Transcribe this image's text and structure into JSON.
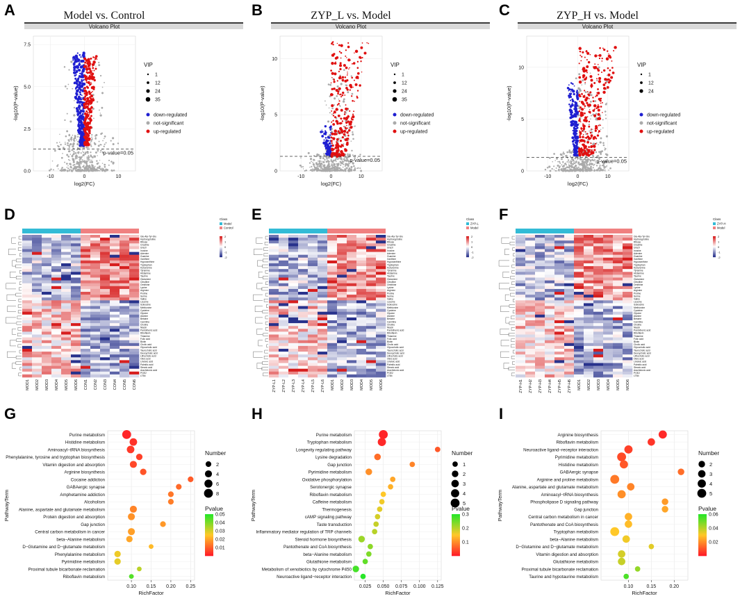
{
  "figure": {
    "letters": [
      "A",
      "B",
      "C",
      "D",
      "E",
      "F",
      "G",
      "H",
      "I"
    ]
  },
  "chart_data": [
    {
      "id": "A",
      "type": "scatter",
      "title": "Model vs. Control",
      "subtitle": "Volcano Plot",
      "xlabel": "log2(FC)",
      "ylabel": "-log10(P-value)",
      "xlim": [
        -15,
        15
      ],
      "ylim": [
        0,
        8
      ],
      "xticks": [
        -10,
        0,
        10
      ],
      "yticks": [
        0.0,
        2.5,
        5.0,
        7.5
      ],
      "ytick_labels": [
        "0.0",
        "2.5",
        "5.0",
        "7.5"
      ],
      "threshold": 1.3,
      "threshold_label": "p-value=0.05",
      "vip_title": "VIP",
      "vip_values": [
        "1",
        "12",
        "24",
        "35"
      ],
      "legend": [
        "down-regulated",
        "not-significant",
        "up-regulated"
      ],
      "colors": {
        "down": "#1f1fd1",
        "ns": "#aaaaaa",
        "up": "#e01010"
      },
      "clouds": {
        "down": [
          -3.8,
          0.0,
          1.5,
          7.0
        ],
        "up": [
          0.0,
          3.8,
          1.5,
          6.8
        ],
        "ns": [
          -12,
          12,
          0,
          2.2
        ],
        "scattered_ns": [
          -6,
          6,
          1.3,
          6.5
        ]
      },
      "counts": {
        "down": 320,
        "up": 280,
        "ns": 420,
        "scattered_ns": 70
      }
    },
    {
      "id": "B",
      "type": "scatter",
      "title": "ZYP_L vs. Model",
      "subtitle": "Volcano Plot",
      "xlabel": "log2(FC)",
      "ylabel": "-log10(P-value)",
      "xlim": [
        -17,
        17
      ],
      "ylim": [
        0,
        12
      ],
      "xticks": [
        -10,
        0,
        10
      ],
      "yticks": [
        0,
        5,
        10
      ],
      "ytick_labels": [
        "0",
        "5",
        "10"
      ],
      "threshold": 1.3,
      "threshold_label": "p-value=0.05",
      "vip_title": "VIP",
      "vip_values": [
        "1",
        "12",
        "24",
        "35"
      ],
      "legend": [
        "down-regulated",
        "not-significant",
        "up-regulated"
      ],
      "colors": {
        "down": "#1f1fd1",
        "ns": "#aaaaaa",
        "up": "#e01010"
      },
      "clouds": {
        "down": [
          -4,
          0,
          1.3,
          4.0
        ],
        "up": [
          0,
          13,
          1.3,
          11.5
        ],
        "ns": [
          -12,
          12,
          0,
          1.6
        ],
        "scattered_ns": [
          -2,
          8,
          1.3,
          9
        ]
      },
      "counts": {
        "down": 80,
        "up": 260,
        "ns": 380,
        "scattered_ns": 90
      }
    },
    {
      "id": "C",
      "type": "scatter",
      "title": "ZYP_H vs. Model",
      "subtitle": "Volcano Plot",
      "xlabel": "log2(FC)",
      "ylabel": "-log10(P-value)",
      "xlim": [
        -17,
        17
      ],
      "ylim": [
        0,
        13
      ],
      "xticks": [
        -10,
        0,
        10
      ],
      "yticks": [
        0,
        5,
        10
      ],
      "ytick_labels": [
        "0",
        "5",
        "10"
      ],
      "threshold": 1.3,
      "threshold_label": "p-value=0.05",
      "vip_title": "VIP",
      "vip_values": [
        "1",
        "12",
        "24"
      ],
      "legend": [
        "down-regulated",
        "not-significant",
        "up-regulated"
      ],
      "colors": {
        "down": "#1f1fd1",
        "ns": "#aaaaaa",
        "up": "#e01010"
      },
      "clouds": {
        "down": [
          -3.5,
          0,
          1.5,
          8.5
        ],
        "up": [
          0.5,
          14,
          1.5,
          12
        ],
        "ns": [
          -12,
          13,
          0,
          2.0
        ],
        "scattered_ns": [
          -1,
          10,
          1.3,
          10
        ]
      },
      "counts": {
        "down": 180,
        "up": 280,
        "ns": 400,
        "scattered_ns": 100
      }
    },
    {
      "id": "D",
      "type": "heatmap",
      "columns": [
        "MOD1",
        "MOD2",
        "MOD3",
        "MOD4",
        "MOD5",
        "MOD6",
        "CON1",
        "CON2",
        "CON3",
        "CON4",
        "CON5",
        "CON6"
      ],
      "group_split": 6,
      "legend_title": "Class",
      "legend_items": [
        "Model",
        "Control"
      ],
      "group_colors": [
        "#33bbd6",
        "#f08080"
      ],
      "scale_labels": [
        "2",
        "1",
        "0",
        "-1",
        "-2"
      ],
      "row_labels": [
        "Glu-Ala-Tyr-Glu",
        "Hydroxyproline",
        "Ribose",
        "Creatine",
        "Uracil",
        "Inosine",
        "Adenine",
        "Guanine",
        "Xanthine",
        "Hypoxanthine",
        "Tryptophan",
        "Kynurenine",
        "Tyramine",
        "Histamine",
        "Taurine",
        "Glutamine",
        "Citrulline",
        "Ornithine",
        "Lysine",
        "Arginine",
        "Proline",
        "Serine",
        "Valine",
        "Leucine",
        "Isoleucine",
        "Methionine",
        "Cysteine",
        "Glycine",
        "Alanine",
        "Betaine",
        "Carnitine",
        "Choline",
        "Niacin",
        "Pantothenic acid",
        "Riboflavin",
        "Thiamine",
        "Folic acid",
        "Biotin",
        "Cholic acid",
        "Glycocholic acid",
        "Taurocholic acid",
        "Deoxycholic acid",
        "Lithocholic acid",
        "Oleic acid",
        "Linoleic acid",
        "Palmitic acid",
        "Stearic acid",
        "Arachidonic acid",
        "PGE2",
        "LTB4"
      ],
      "seed": 11
    },
    {
      "id": "E",
      "type": "heatmap",
      "columns": [
        "ZYP-L1",
        "ZYP-L2",
        "ZYP-L3",
        "ZYP-L4",
        "ZYP-L5",
        "ZYP-L6",
        "MOD1",
        "MOD2",
        "MOD3",
        "MOD4",
        "MOD5",
        "MOD6"
      ],
      "group_split": 6,
      "legend_title": "Class",
      "legend_items": [
        "ZYP-L",
        "Model"
      ],
      "group_colors": [
        "#33bbd6",
        "#f08080"
      ],
      "scale_labels": [
        "2",
        "1",
        "0",
        "-1",
        "-2"
      ],
      "row_labels": [
        "Glu-Ala-Tyr-Glu",
        "Hydroxyproline",
        "Ribose",
        "Creatine",
        "Uracil",
        "Inosine",
        "Adenine",
        "Guanine",
        "Xanthine",
        "Hypoxanthine",
        "Tryptophan",
        "Kynurenine",
        "Tyramine",
        "Histamine",
        "Taurine",
        "Glutamine",
        "Citrulline",
        "Ornithine",
        "Lysine",
        "Arginine",
        "Proline",
        "Serine",
        "Valine",
        "Leucine",
        "Isoleucine",
        "Methionine",
        "Cysteine",
        "Glycine",
        "Alanine",
        "Betaine",
        "Carnitine",
        "Choline",
        "Niacin",
        "Pantothenic acid",
        "Riboflavin",
        "Thiamine",
        "Folic acid",
        "Biotin",
        "Cholic acid",
        "Glycocholic acid",
        "Taurocholic acid",
        "Deoxycholic acid",
        "Lithocholic acid",
        "Oleic acid",
        "Linoleic acid",
        "Palmitic acid",
        "Stearic acid",
        "Arachidonic acid",
        "PGE2",
        "LTB4"
      ],
      "seed": 23
    },
    {
      "id": "F",
      "type": "heatmap",
      "columns": [
        "ZYP-H1",
        "ZYP-H2",
        "ZYP-H3",
        "ZYP-H4",
        "ZYP-H5",
        "ZYP-H6",
        "MOD1",
        "MOD2",
        "MOD3",
        "MOD4",
        "MOD5",
        "MOD6"
      ],
      "group_split": 6,
      "legend_title": "Class",
      "legend_items": [
        "ZYP-H",
        "Model"
      ],
      "group_colors": [
        "#33bbd6",
        "#f08080"
      ],
      "scale_labels": [
        "2",
        "1",
        "0",
        "-1",
        "-2"
      ],
      "row_labels": [
        "Glu-Ala-Tyr-Glu",
        "Hydroxyproline",
        "Ribose",
        "Creatine",
        "Uracil",
        "Inosine",
        "Adenine",
        "Guanine",
        "Xanthine",
        "Hypoxanthine",
        "Tryptophan",
        "Kynurenine",
        "Tyramine",
        "Histamine",
        "Taurine",
        "Glutamine",
        "Citrulline",
        "Ornithine",
        "Lysine",
        "Arginine",
        "Proline",
        "Serine",
        "Valine",
        "Leucine",
        "Isoleucine",
        "Methionine",
        "Cysteine",
        "Glycine",
        "Alanine",
        "Betaine",
        "Carnitine",
        "Choline",
        "Niacin",
        "Pantothenic acid",
        "Riboflavin",
        "Thiamine",
        "Folic acid",
        "Biotin",
        "Cholic acid",
        "Glycocholic acid",
        "Taurocholic acid",
        "Deoxycholic acid",
        "Lithocholic acid",
        "Oleic acid",
        "Linoleic acid",
        "Palmitic acid",
        "Stearic acid",
        "Arachidonic acid",
        "PGE2",
        "LTB4"
      ],
      "seed": 37
    },
    {
      "id": "G",
      "type": "scatter",
      "xlabel": "RichFactor",
      "ylabel": "PathwayTerm",
      "xlim": [
        0.04,
        0.26
      ],
      "xticks": [
        0.1,
        0.15,
        0.2,
        0.25
      ],
      "xtick_labels": [
        "0.10",
        "0.15",
        "0.20",
        "0.25"
      ],
      "size_title": "Number",
      "size_values": [
        2,
        4,
        6,
        8
      ],
      "color_title": "Pvalue",
      "color_ticks": [
        "0.05",
        "0.04",
        "0.03",
        "0.02",
        "0.01"
      ],
      "pmax": 0.05,
      "terms": [
        {
          "name": "Purine metabolism",
          "rf": 0.088,
          "n": 8,
          "p": 0.001
        },
        {
          "name": "Histidine metabolism",
          "rf": 0.105,
          "n": 5,
          "p": 0.003
        },
        {
          "name": "Aminoacyl−tRNA biosynthesis",
          "rf": 0.098,
          "n": 5,
          "p": 0.004
        },
        {
          "name": "Phenylalanine, tyrosine and tryptophan biosynthesis",
          "rf": 0.12,
          "n": 3,
          "p": 0.005
        },
        {
          "name": "Vitamin digestion and absorption",
          "rf": 0.105,
          "n": 4,
          "p": 0.006
        },
        {
          "name": "Arginine biosynthesis",
          "rf": 0.13,
          "n": 3,
          "p": 0.008
        },
        {
          "name": "Cocaine addiction",
          "rf": 0.25,
          "n": 2,
          "p": 0.009
        },
        {
          "name": "GABAergic synapse",
          "rf": 0.22,
          "n": 2,
          "p": 0.011
        },
        {
          "name": "Amphetamine addiction",
          "rf": 0.2,
          "n": 2,
          "p": 0.013
        },
        {
          "name": "Alcoholism",
          "rf": 0.2,
          "n": 2,
          "p": 0.014
        },
        {
          "name": "Alanine, aspartate and glutamate metabolism",
          "rf": 0.105,
          "n": 4,
          "p": 0.015
        },
        {
          "name": "Protein digestion and absorption",
          "rf": 0.1,
          "n": 4,
          "p": 0.017
        },
        {
          "name": "Gap junction",
          "rf": 0.18,
          "n": 2,
          "p": 0.018
        },
        {
          "name": "Central carbon metabolism in cancer",
          "rf": 0.1,
          "n": 4,
          "p": 0.019
        },
        {
          "name": "beta−Alanine metabolism",
          "rf": 0.095,
          "n": 3,
          "p": 0.02
        },
        {
          "name": "D−Glutamine and D−glutamate metabolism",
          "rf": 0.15,
          "n": 1,
          "p": 0.023
        },
        {
          "name": "Phenylalanine metabolism",
          "rf": 0.065,
          "n": 3,
          "p": 0.027
        },
        {
          "name": "Pyrimidine metabolism",
          "rf": 0.065,
          "n": 3,
          "p": 0.028
        },
        {
          "name": "Proximal tubule bicarbonate reclamation",
          "rf": 0.12,
          "n": 1,
          "p": 0.033
        },
        {
          "name": "Riboflavin metabolism",
          "rf": 0.1,
          "n": 1,
          "p": 0.045
        }
      ]
    },
    {
      "id": "H",
      "type": "scatter",
      "xlabel": "RichFactor",
      "ylabel": "PathwayTerm",
      "xlim": [
        0.01,
        0.13
      ],
      "xticks": [
        0.025,
        0.05,
        0.075,
        0.1,
        0.125
      ],
      "xtick_labels": [
        "0.025",
        "0.050",
        "0.075",
        "0.100",
        "0.125"
      ],
      "size_title": "Number",
      "size_values": [
        1,
        2,
        3,
        4,
        5
      ],
      "color_title": "Pvalue",
      "color_ticks": [
        "0.3",
        "0.2",
        "0.1"
      ],
      "pmax": 0.3,
      "terms": [
        {
          "name": "Purine metabolism",
          "rf": 0.05,
          "n": 5,
          "p": 0.005
        },
        {
          "name": "Tryptophan metabolism",
          "rf": 0.048,
          "n": 4,
          "p": 0.01
        },
        {
          "name": "Longevity regulating pathway",
          "rf": 0.125,
          "n": 1,
          "p": 0.05
        },
        {
          "name": "Lysine degradation",
          "rf": 0.042,
          "n": 2,
          "p": 0.07
        },
        {
          "name": "Gap junction",
          "rf": 0.09,
          "n": 1,
          "p": 0.09
        },
        {
          "name": "Pyrimidine metabolism",
          "rf": 0.03,
          "n": 2,
          "p": 0.1
        },
        {
          "name": "Oxidative phosphorylation",
          "rf": 0.063,
          "n": 1,
          "p": 0.12
        },
        {
          "name": "Serotonergic synapse",
          "rf": 0.06,
          "n": 1,
          "p": 0.13
        },
        {
          "name": "Riboflavin metabolism",
          "rf": 0.05,
          "n": 1,
          "p": 0.15
        },
        {
          "name": "Caffeine metabolism",
          "rf": 0.048,
          "n": 1,
          "p": 0.16
        },
        {
          "name": "Thermogenesis",
          "rf": 0.045,
          "n": 1,
          "p": 0.17
        },
        {
          "name": "cAMP signaling pathway",
          "rf": 0.042,
          "n": 1,
          "p": 0.18
        },
        {
          "name": "Taste transduction",
          "rf": 0.04,
          "n": 1,
          "p": 0.19
        },
        {
          "name": "Inflammatory mediator regulation of TRP channels",
          "rf": 0.038,
          "n": 1,
          "p": 0.2
        },
        {
          "name": "Steroid hormone biosynthesis",
          "rf": 0.02,
          "n": 2,
          "p": 0.22
        },
        {
          "name": "Pantothenate and CoA biosynthesis",
          "rf": 0.032,
          "n": 1,
          "p": 0.23
        },
        {
          "name": "beta−Alanine metabolism",
          "rf": 0.03,
          "n": 1,
          "p": 0.24
        },
        {
          "name": "Glutathione metabolism",
          "rf": 0.025,
          "n": 1,
          "p": 0.26
        },
        {
          "name": "Metabolism of xenobiotics by cytochrome P450",
          "rf": 0.012,
          "n": 2,
          "p": 0.28
        },
        {
          "name": "Neuroactive ligand−receptor interaction",
          "rf": 0.022,
          "n": 1,
          "p": 0.3
        }
      ]
    },
    {
      "id": "I",
      "type": "scatter",
      "xlabel": "RichFactor",
      "ylabel": "PathwayTerm",
      "xlim": [
        0.04,
        0.23
      ],
      "xticks": [
        0.1,
        0.15,
        0.2
      ],
      "xtick_labels": [
        "0.10",
        "0.15",
        "0.20"
      ],
      "size_title": "Number",
      "size_values": [
        2,
        3,
        4,
        5
      ],
      "color_title": "Pvalue",
      "color_ticks": [
        "0.06",
        "0.04",
        "0.02"
      ],
      "pmax": 0.06,
      "terms": [
        {
          "name": "Arginine biosynthesis",
          "rf": 0.175,
          "n": 4,
          "p": 0.002
        },
        {
          "name": "Riboflavin metabolism",
          "rf": 0.15,
          "n": 3,
          "p": 0.004
        },
        {
          "name": "Neuroactive ligand−receptor interaction",
          "rf": 0.1,
          "n": 4,
          "p": 0.006
        },
        {
          "name": "Pyrimidine metabolism",
          "rf": 0.085,
          "n": 5,
          "p": 0.008
        },
        {
          "name": "Histidine metabolism",
          "rf": 0.09,
          "n": 4,
          "p": 0.01
        },
        {
          "name": "GABAergic synapse",
          "rf": 0.215,
          "n": 2,
          "p": 0.014
        },
        {
          "name": "Arginine and proline metabolism",
          "rf": 0.07,
          "n": 5,
          "p": 0.016
        },
        {
          "name": "Alanine, aspartate and glutamate metabolism",
          "rf": 0.105,
          "n": 3,
          "p": 0.018
        },
        {
          "name": "Aminoacyl−tRNA biosynthesis",
          "rf": 0.085,
          "n": 4,
          "p": 0.02
        },
        {
          "name": "Phospholipase D signaling pathway",
          "rf": 0.18,
          "n": 2,
          "p": 0.022
        },
        {
          "name": "Gap junction",
          "rf": 0.18,
          "n": 2,
          "p": 0.024
        },
        {
          "name": "Central carbon metabolism in cancer",
          "rf": 0.1,
          "n": 3,
          "p": 0.026
        },
        {
          "name": "Pantothenate and CoA biosynthesis",
          "rf": 0.1,
          "n": 3,
          "p": 0.028
        },
        {
          "name": "Tryptophan metabolism",
          "rf": 0.07,
          "n": 5,
          "p": 0.03
        },
        {
          "name": "beta−Alanine metabolism",
          "rf": 0.095,
          "n": 3,
          "p": 0.032
        },
        {
          "name": "D−Glutamine and D−glutamate metabolism",
          "rf": 0.15,
          "n": 1,
          "p": 0.034
        },
        {
          "name": "Vitamin digestion and absorption",
          "rf": 0.085,
          "n": 3,
          "p": 0.036
        },
        {
          "name": "Glutathione metabolism",
          "rf": 0.085,
          "n": 3,
          "p": 0.038
        },
        {
          "name": "Proximal tubule bicarbonate reclamation",
          "rf": 0.12,
          "n": 1,
          "p": 0.045
        },
        {
          "name": "Taurine and hypotaurine metabolism",
          "rf": 0.095,
          "n": 1,
          "p": 0.055
        }
      ]
    }
  ]
}
